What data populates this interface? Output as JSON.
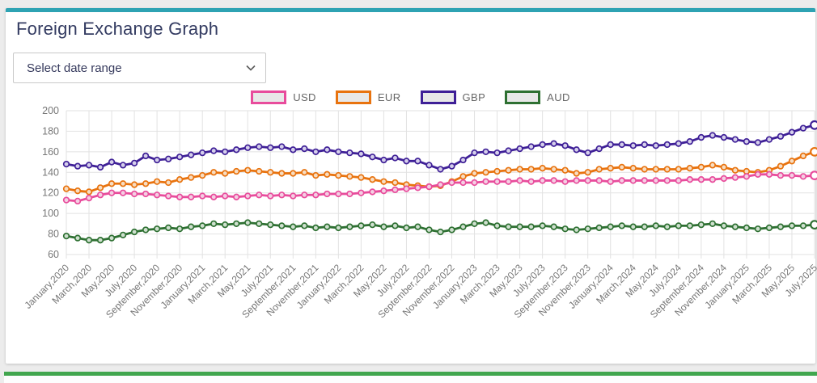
{
  "page": {
    "background": "#ececec"
  },
  "card": {
    "title": "Foreign Exchange Graph",
    "accent_color": "#2ea3b3",
    "title_color": "#333b61"
  },
  "controls": {
    "date_range_select": {
      "value": "Select date range",
      "icon": "chevron-down-icon"
    }
  },
  "footer_card": {
    "accent_color": "#41a64e"
  },
  "chart_data": {
    "type": "line",
    "title": "Foreign Exchange Graph",
    "grid": true,
    "legend_position": "top",
    "y_axis": {
      "min": 60,
      "max": 200,
      "step": 20,
      "ticks": [
        200,
        180,
        160,
        140,
        120,
        100,
        80,
        60
      ]
    },
    "x_tick_labels": [
      "January,2020",
      "March,2020",
      "May,2020",
      "July,2020",
      "September,2020",
      "November,2020",
      "January,2021",
      "March,2021",
      "May,2021",
      "July,2021",
      "September,2021",
      "November,2021",
      "January,2022",
      "March,2022",
      "May,2022",
      "July,2022",
      "September,2022",
      "November,2022",
      "January,2023",
      "March,2023",
      "May,2023",
      "July,2023",
      "September,2023",
      "November,2023",
      "January,2024",
      "March,2024",
      "May,2024",
      "July,2024",
      "September,2024",
      "November,2024",
      "January,2025",
      "March,2025",
      "May,2025",
      "July,2025"
    ],
    "x_months_per_tick": 2,
    "axis_text_color": "#777777",
    "grid_color": "#e2e2e2",
    "legend_swatch_fill": "#e8e8e8",
    "series": [
      {
        "name": "USD",
        "color": "#e84c9c",
        "marker_fill": "#f4cfe3",
        "values": [
          113,
          112,
          115,
          118,
          120,
          120,
          119,
          119,
          118,
          117,
          116,
          116,
          117,
          116,
          117,
          116,
          117,
          118,
          117,
          118,
          117,
          118,
          118,
          119,
          119,
          119,
          120,
          121,
          122,
          123,
          124,
          125,
          126,
          128,
          130,
          130,
          130,
          131,
          131,
          131,
          132,
          131,
          132,
          132,
          131,
          132,
          132,
          132,
          131,
          132,
          132,
          132,
          132,
          132,
          132,
          133,
          133,
          133,
          134,
          135,
          136,
          138,
          138,
          137,
          137,
          136,
          137
        ]
      },
      {
        "name": "EUR",
        "color": "#e8730f",
        "marker_fill": "#f7ddc2",
        "values": [
          124,
          122,
          121,
          125,
          129,
          129,
          128,
          129,
          131,
          130,
          133,
          135,
          137,
          140,
          139,
          141,
          142,
          141,
          140,
          139,
          139,
          140,
          137,
          138,
          137,
          136,
          135,
          133,
          131,
          130,
          128,
          127,
          126,
          127,
          131,
          136,
          139,
          140,
          141,
          142,
          143,
          143,
          144,
          143,
          142,
          139,
          140,
          143,
          144,
          145,
          144,
          143,
          143,
          143,
          143,
          144,
          145,
          147,
          145,
          142,
          141,
          140,
          142,
          146,
          151,
          156,
          160
        ]
      },
      {
        "name": "GBP",
        "color": "#3f2097",
        "marker_fill": "#d5cfeb",
        "values": [
          148,
          146,
          147,
          145,
          150,
          147,
          149,
          156,
          152,
          153,
          155,
          157,
          159,
          161,
          160,
          162,
          164,
          165,
          164,
          165,
          162,
          163,
          160,
          162,
          160,
          159,
          158,
          155,
          152,
          154,
          151,
          151,
          147,
          143,
          146,
          152,
          159,
          160,
          159,
          161,
          163,
          165,
          167,
          168,
          166,
          162,
          159,
          163,
          167,
          167,
          166,
          167,
          166,
          167,
          168,
          170,
          174,
          176,
          174,
          172,
          170,
          169,
          172,
          175,
          179,
          183,
          186
        ]
      },
      {
        "name": "AUD",
        "color": "#2e7032",
        "marker_fill": "#cfe0cf",
        "values": [
          78,
          76,
          74,
          74,
          76,
          79,
          82,
          84,
          85,
          86,
          85,
          87,
          88,
          90,
          89,
          90,
          91,
          90,
          89,
          88,
          87,
          88,
          86,
          87,
          86,
          87,
          88,
          89,
          87,
          88,
          86,
          87,
          84,
          82,
          84,
          87,
          90,
          91,
          88,
          87,
          87,
          87,
          88,
          87,
          85,
          84,
          85,
          86,
          87,
          88,
          87,
          87,
          88,
          87,
          88,
          88,
          89,
          90,
          88,
          87,
          86,
          85,
          86,
          87,
          88,
          88,
          89
        ]
      }
    ]
  }
}
